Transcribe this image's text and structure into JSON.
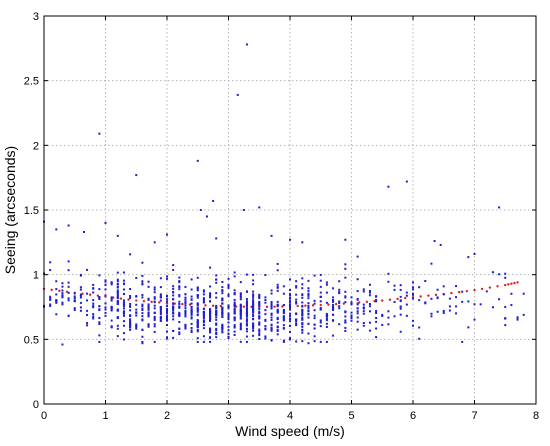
{
  "chart_data": {
    "type": "scatter",
    "title": "",
    "xlabel": "Wind speed (m/s)",
    "ylabel": "Seeing (arcseconds)",
    "xlim": [
      0,
      8
    ],
    "ylim": [
      0,
      3
    ],
    "xticks": [
      "0",
      "1",
      "2",
      "3",
      "4",
      "5",
      "6",
      "7",
      "8"
    ],
    "yticks": [
      "0",
      "0.5",
      "1",
      "1.5",
      "2",
      "2.5",
      "3"
    ],
    "grid": true,
    "legend": "none",
    "colors": {
      "measurements": "#1f1fd0",
      "fit": "#e02020",
      "axes": "#000000",
      "grid": "#a6a6a6"
    },
    "series": [
      {
        "style": "points",
        "color": "#1f1fd0",
        "cluster": {
          "x_range": [
            0,
            7.8
          ],
          "y_mean": 0.75,
          "y_spread": 0.13,
          "count": 1150,
          "density_peak_x": 2.8
        },
        "outliers": [
          {
            "x": 0.9,
            "y": 2.09
          },
          {
            "x": 1.5,
            "y": 1.77
          },
          {
            "x": 2.5,
            "y": 1.88
          },
          {
            "x": 2.75,
            "y": 1.57
          },
          {
            "x": 3.15,
            "y": 2.39
          },
          {
            "x": 3.3,
            "y": 2.78
          },
          {
            "x": 5.6,
            "y": 1.68
          },
          {
            "x": 5.9,
            "y": 1.72
          },
          {
            "x": 7.4,
            "y": 1.52
          },
          {
            "x": 3.5,
            "y": 1.52
          },
          {
            "x": 3.25,
            "y": 1.5
          },
          {
            "x": 2.55,
            "y": 1.5
          },
          {
            "x": 2.65,
            "y": 1.45
          },
          {
            "x": 6.35,
            "y": 1.26
          },
          {
            "x": 6.45,
            "y": 1.23
          },
          {
            "x": 0.0,
            "y": 1.41
          },
          {
            "x": 0.2,
            "y": 1.35
          },
          {
            "x": 0.4,
            "y": 1.38
          },
          {
            "x": 0.65,
            "y": 1.33
          },
          {
            "x": 1.0,
            "y": 1.4
          },
          {
            "x": 1.2,
            "y": 1.3
          },
          {
            "x": 1.8,
            "y": 1.25
          },
          {
            "x": 2.0,
            "y": 1.31
          },
          {
            "x": 2.8,
            "y": 1.28
          },
          {
            "x": 3.7,
            "y": 1.3
          },
          {
            "x": 4.0,
            "y": 1.27
          },
          {
            "x": 4.2,
            "y": 1.25
          },
          {
            "x": 4.9,
            "y": 1.27
          },
          {
            "x": 7.0,
            "y": 1.16
          },
          {
            "x": 7.5,
            "y": 0.61
          },
          {
            "x": 7.5,
            "y": 0.66
          },
          {
            "x": 7.7,
            "y": 0.67
          },
          {
            "x": 0.3,
            "y": 0.46
          },
          {
            "x": 1.6,
            "y": 0.47
          },
          {
            "x": 4.3,
            "y": 0.47
          }
        ]
      },
      {
        "style": "dotted-fit",
        "color": "#e02020",
        "x": [
          0.0,
          0.5,
          1.0,
          1.5,
          2.0,
          2.5,
          3.0,
          3.5,
          4.0,
          4.5,
          5.0,
          5.5,
          6.0,
          6.5,
          7.0,
          7.5,
          7.7
        ],
        "y": [
          0.89,
          0.86,
          0.83,
          0.8,
          0.78,
          0.765,
          0.755,
          0.75,
          0.755,
          0.765,
          0.78,
          0.8,
          0.825,
          0.85,
          0.88,
          0.92,
          0.94
        ]
      }
    ]
  }
}
